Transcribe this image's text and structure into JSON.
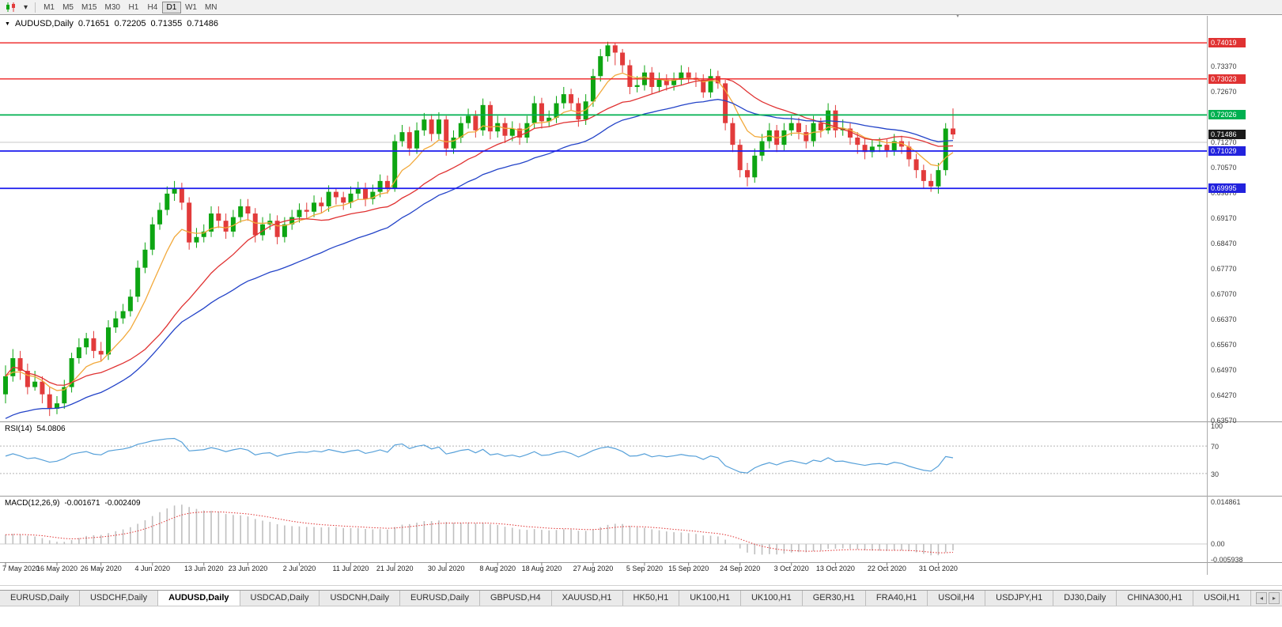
{
  "toolbar": {
    "timeframes": [
      "M1",
      "M5",
      "M15",
      "M30",
      "H1",
      "H4",
      "D1",
      "W1",
      "MN"
    ],
    "active_timeframe": "D1"
  },
  "chart_header": {
    "symbol": "AUDUSD,Daily",
    "open": "0.71651",
    "high": "0.72205",
    "low": "0.71355",
    "close": "0.71486"
  },
  "price_axis": {
    "labels": [
      "0.73370",
      "0.72670",
      "0.71970",
      "0.71270",
      "0.70570",
      "0.69870",
      "0.69170",
      "0.68470",
      "0.67770",
      "0.67070",
      "0.66370",
      "0.65670",
      "0.64970",
      "0.64270",
      "0.63570"
    ],
    "badges": [
      {
        "label": "0.74019",
        "bg": "#e03232"
      },
      {
        "label": "0.73023",
        "bg": "#e03232"
      },
      {
        "label": "0.72026",
        "bg": "#00b050"
      },
      {
        "label": "0.71486",
        "bg": "#1a1a1a"
      },
      {
        "label": "0.71029",
        "bg": "#2222dd"
      },
      {
        "label": "0.69995",
        "bg": "#2222dd"
      }
    ]
  },
  "rsi": {
    "name": "RSI(14)",
    "value": "54.0806",
    "axis_labels": [
      "100",
      "70",
      "30"
    ],
    "levels": [
      70,
      30
    ],
    "line_color": "#56a0d9"
  },
  "macd": {
    "name": "MACD(12,26,9)",
    "main_value": "-0.001671",
    "signal_value": "-0.002409",
    "axis_labels": [
      "0.014861",
      "0.00",
      "-0.005938"
    ],
    "histogram_color": "#bfbfbf",
    "signal_color": "#e03232"
  },
  "time_axis": {
    "dates": [
      "7 May 2020",
      "16 May 2020",
      "26 May 2020",
      "4 Jun 2020",
      "13 Jun 2020",
      "23 Jun 2020",
      "2 Jul 2020",
      "11 Jul 2020",
      "21 Jul 2020",
      "30 Jul 2020",
      "8 Aug 2020",
      "18 Aug 2020",
      "27 Aug 2020",
      "5 Sep 2020",
      "15 Sep 2020",
      "24 Sep 2020",
      "3 Oct 2020",
      "13 Oct 2020",
      "22 Oct 2020",
      "31 Oct 2020"
    ],
    "tick_indices": [
      0,
      7,
      13,
      20,
      27,
      33,
      40,
      47,
      53,
      60,
      67,
      73,
      80,
      87,
      93,
      100,
      107,
      113,
      120,
      127
    ]
  },
  "tabs": {
    "active_index": 2,
    "items": [
      "EURUSD,Daily",
      "USDCHF,Daily",
      "AUDUSD,Daily",
      "USDCAD,Daily",
      "USDCNH,Daily",
      "EURUSD,Daily",
      "GBPUSD,H4",
      "XAUUSD,H1",
      "HK50,H1",
      "UK100,H1",
      "UK100,H1",
      "GER30,H1",
      "FRA40,H1",
      "USOil,H4",
      "USDJPY,H1",
      "DJ30,Daily",
      "CHINA300,H1",
      "USOil,H1"
    ]
  },
  "chart_data": {
    "type": "candlestick",
    "symbol": "AUDUSD",
    "timeframe": "Daily",
    "price_range": {
      "top": 0.7433,
      "bottom": 0.6355
    },
    "up_color": "#0da512",
    "down_color": "#e23b3b",
    "h_lines": [
      {
        "price": 0.7127,
        "color": "#c9c9c9",
        "width": 1,
        "under": true
      },
      {
        "price": 0.74019,
        "color": "#ee2222",
        "width": 1.4
      },
      {
        "price": 0.73023,
        "color": "#ee2222",
        "width": 1.4
      },
      {
        "price": 0.72026,
        "color": "#00b050",
        "width": 1.8
      },
      {
        "price": 0.71029,
        "color": "#1a1aee",
        "width": 1.8
      },
      {
        "price": 0.69995,
        "color": "#1a1aee",
        "width": 1.8
      }
    ],
    "moving_averages": [
      {
        "type": "ema",
        "period": 8,
        "color": "#f2a93b"
      },
      {
        "type": "sma",
        "period": 20,
        "color": "#e03232"
      },
      {
        "type": "ema",
        "period": 34,
        "color": "#2343c8",
        "seed": 0.6356
      }
    ],
    "candles": [
      [
        0.643,
        0.651,
        0.6405,
        0.648
      ],
      [
        0.648,
        0.6555,
        0.6465,
        0.653
      ],
      [
        0.653,
        0.655,
        0.647,
        0.6495
      ],
      [
        0.6495,
        0.6515,
        0.643,
        0.645
      ],
      [
        0.645,
        0.6495,
        0.644,
        0.6465
      ],
      [
        0.6465,
        0.648,
        0.6405,
        0.643
      ],
      [
        0.643,
        0.645,
        0.637,
        0.639
      ],
      [
        0.639,
        0.6425,
        0.6375,
        0.6405
      ],
      [
        0.6405,
        0.647,
        0.639,
        0.645
      ],
      [
        0.645,
        0.6545,
        0.6435,
        0.653
      ],
      [
        0.653,
        0.6585,
        0.6515,
        0.656
      ],
      [
        0.656,
        0.66,
        0.654,
        0.6585
      ],
      [
        0.6585,
        0.6605,
        0.653,
        0.655
      ],
      [
        0.655,
        0.6575,
        0.652,
        0.654
      ],
      [
        0.654,
        0.6635,
        0.6525,
        0.6615
      ],
      [
        0.6615,
        0.666,
        0.66,
        0.664
      ],
      [
        0.664,
        0.668,
        0.6625,
        0.666
      ],
      [
        0.666,
        0.672,
        0.6645,
        0.67
      ],
      [
        0.67,
        0.68,
        0.6685,
        0.678
      ],
      [
        0.678,
        0.685,
        0.6765,
        0.683
      ],
      [
        0.683,
        0.692,
        0.6815,
        0.69
      ],
      [
        0.69,
        0.696,
        0.6885,
        0.694
      ],
      [
        0.694,
        0.7005,
        0.6925,
        0.6985
      ],
      [
        0.6985,
        0.702,
        0.6965,
        0.7
      ],
      [
        0.7,
        0.7015,
        0.694,
        0.696
      ],
      [
        0.696,
        0.6975,
        0.683,
        0.685
      ],
      [
        0.685,
        0.689,
        0.6835,
        0.6865
      ],
      [
        0.6865,
        0.69,
        0.685,
        0.688
      ],
      [
        0.688,
        0.695,
        0.6865,
        0.693
      ],
      [
        0.693,
        0.695,
        0.689,
        0.691
      ],
      [
        0.691,
        0.693,
        0.686,
        0.688
      ],
      [
        0.688,
        0.694,
        0.6865,
        0.692
      ],
      [
        0.692,
        0.697,
        0.6905,
        0.695
      ],
      [
        0.695,
        0.697,
        0.691,
        0.693
      ],
      [
        0.693,
        0.6945,
        0.685,
        0.687
      ],
      [
        0.687,
        0.692,
        0.6855,
        0.69
      ],
      [
        0.69,
        0.693,
        0.6885,
        0.691
      ],
      [
        0.691,
        0.6925,
        0.6845,
        0.6865
      ],
      [
        0.6865,
        0.692,
        0.685,
        0.69
      ],
      [
        0.69,
        0.694,
        0.6885,
        0.692
      ],
      [
        0.692,
        0.6958,
        0.6905,
        0.694
      ],
      [
        0.694,
        0.696,
        0.6915,
        0.6935
      ],
      [
        0.6935,
        0.698,
        0.692,
        0.696
      ],
      [
        0.696,
        0.6975,
        0.693,
        0.695
      ],
      [
        0.695,
        0.7008,
        0.6935,
        0.699
      ],
      [
        0.699,
        0.7,
        0.6955,
        0.6975
      ],
      [
        0.6975,
        0.699,
        0.694,
        0.696
      ],
      [
        0.696,
        0.7005,
        0.6945,
        0.6985
      ],
      [
        0.6985,
        0.7018,
        0.697,
        0.7
      ],
      [
        0.7,
        0.7015,
        0.695,
        0.697
      ],
      [
        0.697,
        0.701,
        0.6955,
        0.699
      ],
      [
        0.699,
        0.7038,
        0.6975,
        0.702
      ],
      [
        0.702,
        0.7035,
        0.6985,
        0.7
      ],
      [
        0.7,
        0.7148,
        0.699,
        0.713
      ],
      [
        0.713,
        0.7175,
        0.7115,
        0.7155
      ],
      [
        0.7155,
        0.717,
        0.709,
        0.711
      ],
      [
        0.711,
        0.7182,
        0.7095,
        0.716
      ],
      [
        0.716,
        0.7208,
        0.7145,
        0.719
      ],
      [
        0.719,
        0.7205,
        0.713,
        0.715
      ],
      [
        0.715,
        0.721,
        0.7135,
        0.719
      ],
      [
        0.719,
        0.72,
        0.709,
        0.711
      ],
      [
        0.711,
        0.716,
        0.7095,
        0.714
      ],
      [
        0.714,
        0.7198,
        0.7125,
        0.718
      ],
      [
        0.718,
        0.722,
        0.7165,
        0.72
      ],
      [
        0.72,
        0.7215,
        0.714,
        0.716
      ],
      [
        0.716,
        0.7248,
        0.7145,
        0.723
      ],
      [
        0.723,
        0.724,
        0.7135,
        0.7157
      ],
      [
        0.7157,
        0.72,
        0.714,
        0.718
      ],
      [
        0.718,
        0.7195,
        0.7125,
        0.7145
      ],
      [
        0.7145,
        0.7185,
        0.713,
        0.7165
      ],
      [
        0.7165,
        0.718,
        0.712,
        0.714
      ],
      [
        0.714,
        0.72,
        0.7125,
        0.718
      ],
      [
        0.718,
        0.7255,
        0.7165,
        0.7235
      ],
      [
        0.7235,
        0.725,
        0.7165,
        0.7185
      ],
      [
        0.7185,
        0.7215,
        0.717,
        0.7195
      ],
      [
        0.7195,
        0.7255,
        0.718,
        0.7235
      ],
      [
        0.7235,
        0.728,
        0.722,
        0.726
      ],
      [
        0.726,
        0.7275,
        0.7215,
        0.7235
      ],
      [
        0.7235,
        0.725,
        0.717,
        0.719
      ],
      [
        0.719,
        0.726,
        0.7175,
        0.724
      ],
      [
        0.724,
        0.733,
        0.7225,
        0.731
      ],
      [
        0.731,
        0.7385,
        0.7295,
        0.7365
      ],
      [
        0.7365,
        0.7405,
        0.735,
        0.7395
      ],
      [
        0.7395,
        0.7402,
        0.734,
        0.7375
      ],
      [
        0.7375,
        0.7385,
        0.732,
        0.734
      ],
      [
        0.734,
        0.7355,
        0.726,
        0.728
      ],
      [
        0.728,
        0.731,
        0.7265,
        0.7285
      ],
      [
        0.7285,
        0.734,
        0.727,
        0.732
      ],
      [
        0.732,
        0.7335,
        0.726,
        0.728
      ],
      [
        0.728,
        0.732,
        0.7265,
        0.73
      ],
      [
        0.73,
        0.7315,
        0.727,
        0.7285
      ],
      [
        0.7285,
        0.732,
        0.727,
        0.73
      ],
      [
        0.73,
        0.734,
        0.7285,
        0.732
      ],
      [
        0.732,
        0.7335,
        0.729,
        0.7305
      ],
      [
        0.7305,
        0.732,
        0.728,
        0.73
      ],
      [
        0.73,
        0.7315,
        0.725,
        0.7265
      ],
      [
        0.7265,
        0.733,
        0.725,
        0.731
      ],
      [
        0.731,
        0.7325,
        0.7275,
        0.729
      ],
      [
        0.729,
        0.73,
        0.716,
        0.718
      ],
      [
        0.718,
        0.7195,
        0.71,
        0.712
      ],
      [
        0.712,
        0.7135,
        0.703,
        0.705
      ],
      [
        0.705,
        0.707,
        0.7005,
        0.703
      ],
      [
        0.703,
        0.711,
        0.7015,
        0.709
      ],
      [
        0.709,
        0.715,
        0.7075,
        0.713
      ],
      [
        0.713,
        0.718,
        0.711,
        0.716
      ],
      [
        0.716,
        0.7175,
        0.71,
        0.712
      ],
      [
        0.712,
        0.718,
        0.7105,
        0.716
      ],
      [
        0.716,
        0.72,
        0.7145,
        0.718
      ],
      [
        0.718,
        0.7195,
        0.7135,
        0.7155
      ],
      [
        0.7155,
        0.7175,
        0.711,
        0.713
      ],
      [
        0.713,
        0.72,
        0.7115,
        0.718
      ],
      [
        0.718,
        0.7195,
        0.714,
        0.716
      ],
      [
        0.716,
        0.7235,
        0.715,
        0.7215
      ],
      [
        0.7215,
        0.723,
        0.714,
        0.716
      ],
      [
        0.716,
        0.719,
        0.7145,
        0.7165
      ],
      [
        0.7165,
        0.718,
        0.712,
        0.714
      ],
      [
        0.714,
        0.7155,
        0.7095,
        0.712
      ],
      [
        0.712,
        0.714,
        0.708,
        0.71
      ],
      [
        0.71,
        0.7135,
        0.7085,
        0.7115
      ],
      [
        0.7115,
        0.714,
        0.71,
        0.712
      ],
      [
        0.712,
        0.7135,
        0.7085,
        0.7105
      ],
      [
        0.7105,
        0.715,
        0.709,
        0.713
      ],
      [
        0.713,
        0.7145,
        0.7095,
        0.7115
      ],
      [
        0.7115,
        0.713,
        0.706,
        0.708
      ],
      [
        0.708,
        0.7095,
        0.7028,
        0.705
      ],
      [
        0.705,
        0.7065,
        0.7,
        0.702
      ],
      [
        0.702,
        0.704,
        0.699,
        0.7005
      ],
      [
        0.7005,
        0.707,
        0.6985,
        0.705
      ],
      [
        0.705,
        0.718,
        0.7035,
        0.7165
      ],
      [
        0.71651,
        0.72205,
        0.71355,
        0.71486
      ]
    ]
  }
}
